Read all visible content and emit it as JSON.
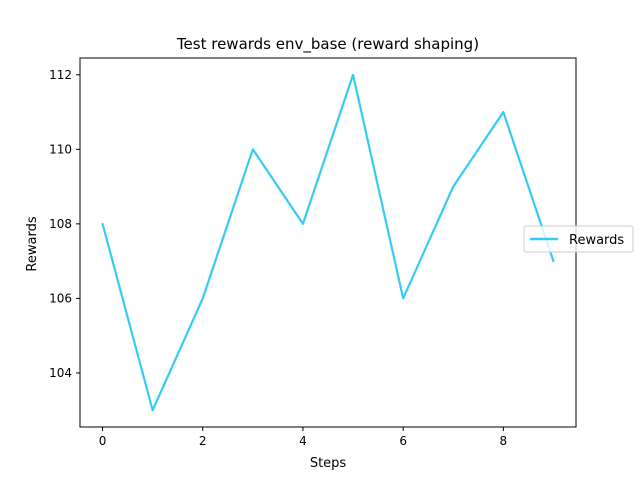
{
  "chart_data": {
    "type": "line",
    "title": "Test rewards env_base (reward shaping)",
    "xlabel": "Steps",
    "ylabel": "Rewards",
    "x": [
      0,
      1,
      2,
      3,
      4,
      5,
      6,
      7,
      8,
      9
    ],
    "series": [
      {
        "name": "Rewards",
        "color": "#33ccf2",
        "values": [
          108,
          103,
          106,
          110,
          108,
          112,
          106,
          109,
          111,
          107
        ]
      }
    ],
    "xlim": [
      -0.45,
      9.45
    ],
    "ylim": [
      102.55,
      112.45
    ],
    "xticks": [
      0,
      2,
      4,
      6,
      8
    ],
    "yticks": [
      104,
      106,
      108,
      110,
      112
    ],
    "grid": false,
    "legend_position": "center-right"
  }
}
